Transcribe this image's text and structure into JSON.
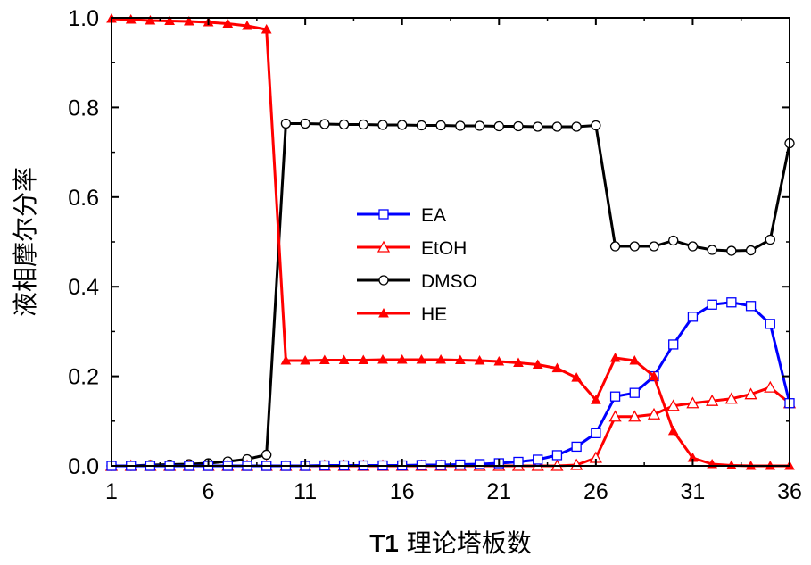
{
  "chart_data": {
    "type": "line",
    "title": "",
    "xlabel_prefix": "T1",
    "xlabel_suffix": " 理论塔板数",
    "ylabel": "液相摩尔分率",
    "xlim": [
      1,
      36
    ],
    "ylim": [
      0,
      1.0
    ],
    "xticks": [
      1,
      6,
      11,
      16,
      21,
      26,
      31,
      36
    ],
    "yticks": [
      0.0,
      0.2,
      0.4,
      0.6,
      0.8,
      1.0
    ],
    "ytick_labels": [
      "0.0",
      "0.2",
      "0.4",
      "0.6",
      "0.8",
      "1.0"
    ],
    "legend_location": "center-left",
    "x": [
      1,
      2,
      3,
      4,
      5,
      6,
      7,
      8,
      9,
      10,
      11,
      12,
      13,
      14,
      15,
      16,
      17,
      18,
      19,
      20,
      21,
      22,
      23,
      24,
      25,
      26,
      27,
      28,
      29,
      30,
      31,
      32,
      33,
      34,
      35,
      36
    ],
    "series": [
      {
        "name": "EA",
        "color": "#0000ff",
        "marker": "open-square",
        "values": [
          0.0,
          0.0,
          0.0,
          0.0,
          0.0,
          0.0,
          0.0,
          0.0,
          0.0,
          0.0,
          0.0,
          0.001,
          0.001,
          0.001,
          0.001,
          0.001,
          0.002,
          0.002,
          0.003,
          0.004,
          0.006,
          0.009,
          0.014,
          0.024,
          0.043,
          0.073,
          0.155,
          0.163,
          0.2,
          0.271,
          0.333,
          0.36,
          0.365,
          0.357,
          0.317,
          0.14
        ]
      },
      {
        "name": "EtOH",
        "color": "#ff0000",
        "marker": "open-triangle",
        "values": [
          0.0,
          0.0,
          0.0,
          0.0,
          0.0,
          0.0,
          0.0,
          0.0,
          0.0,
          0.0,
          0.0,
          0.0,
          0.0,
          0.0,
          0.0,
          0.0,
          0.0,
          0.0,
          0.0,
          0.0,
          0.0,
          0.0,
          0.0,
          0.0,
          0.002,
          0.018,
          0.11,
          0.11,
          0.115,
          0.134,
          0.14,
          0.145,
          0.15,
          0.16,
          0.175,
          0.14
        ]
      },
      {
        "name": "DMSO",
        "color": "#000000",
        "marker": "open-circle",
        "values": [
          0.0,
          0.0,
          0.002,
          0.003,
          0.004,
          0.006,
          0.01,
          0.015,
          0.025,
          0.764,
          0.764,
          0.763,
          0.762,
          0.762,
          0.761,
          0.761,
          0.76,
          0.76,
          0.759,
          0.759,
          0.758,
          0.758,
          0.757,
          0.757,
          0.757,
          0.76,
          0.49,
          0.49,
          0.49,
          0.503,
          0.49,
          0.482,
          0.48,
          0.481,
          0.505,
          0.72
        ]
      },
      {
        "name": "HE",
        "color": "#ff0000",
        "marker": "filled-triangle",
        "values": [
          0.998,
          0.996,
          0.994,
          0.993,
          0.992,
          0.99,
          0.987,
          0.982,
          0.974,
          0.235,
          0.235,
          0.236,
          0.236,
          0.236,
          0.237,
          0.237,
          0.237,
          0.237,
          0.236,
          0.235,
          0.233,
          0.23,
          0.226,
          0.218,
          0.197,
          0.147,
          0.241,
          0.235,
          0.2,
          0.078,
          0.018,
          0.004,
          0.001,
          0.0,
          0.0,
          0.0
        ]
      }
    ]
  }
}
